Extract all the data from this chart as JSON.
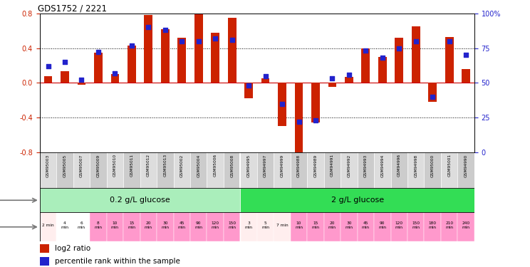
{
  "title": "GDS1752 / 2221",
  "samples": [
    "GSM95003",
    "GSM95005",
    "GSM95007",
    "GSM95009",
    "GSM95010",
    "GSM95011",
    "GSM95012",
    "GSM95013",
    "GSM95002",
    "GSM95004",
    "GSM95006",
    "GSM95008",
    "GSM94995",
    "GSM94997",
    "GSM94999",
    "GSM94988",
    "GSM94989",
    "GSM94991",
    "GSM94992",
    "GSM94993",
    "GSM94994",
    "GSM94996",
    "GSM94998",
    "GSM95000",
    "GSM95001",
    "GSM94990"
  ],
  "log2_ratio": [
    0.08,
    0.13,
    -0.02,
    0.35,
    0.1,
    0.43,
    0.78,
    0.62,
    0.52,
    0.79,
    0.58,
    0.75,
    -0.18,
    0.05,
    -0.5,
    -0.85,
    -0.46,
    -0.05,
    0.07,
    0.4,
    0.3,
    0.52,
    0.65,
    -0.22,
    0.53,
    0.16
  ],
  "percentile": [
    62,
    65,
    52,
    72,
    57,
    77,
    90,
    88,
    80,
    80,
    82,
    81,
    48,
    55,
    35,
    22,
    23,
    53,
    56,
    73,
    68,
    75,
    80,
    40,
    80,
    70
  ],
  "time_labels": [
    "2 min",
    "4\nmin",
    "6\nmin",
    "8\nmin",
    "10\nmin",
    "15\nmin",
    "20\nmin",
    "30\nmin",
    "45\nmin",
    "90\nmin",
    "120\nmin",
    "150\nmin",
    "3\nmin",
    "5\nmin",
    "7 min",
    "10\nmin",
    "15\nmin",
    "20\nmin",
    "30\nmin",
    "45\nmin",
    "90\nmin",
    "120\nmin",
    "150\nmin",
    "180\nmin",
    "210\nmin",
    "240\nmin"
  ],
  "dose_groups": [
    {
      "label": "0.2 g/L glucose",
      "start": 0,
      "end": 12,
      "color": "#aaeebb"
    },
    {
      "label": "2 g/L glucose",
      "start": 12,
      "end": 26,
      "color": "#33dd55"
    }
  ],
  "bar_color": "#CC2200",
  "dot_color": "#2222CC",
  "ylim": [
    -0.8,
    0.8
  ],
  "yticks_left": [
    -0.8,
    -0.4,
    0.0,
    0.4,
    0.8
  ],
  "yticks_right": [
    0,
    25,
    50,
    75,
    100
  ],
  "hline_color": "#CC0000",
  "bg_color": "#FFFFFF",
  "time_bg_colors": [
    "#FFEEEE",
    "#FFFFFF",
    "#FFFFFF",
    "#FF99CC",
    "#FF99CC",
    "#FF99CC",
    "#FF99CC",
    "#FF99CC",
    "#FF99CC",
    "#FF99CC",
    "#FF99CC",
    "#FF99CC",
    "#FFEEEE",
    "#FFEEEE",
    "#FFEEEE",
    "#FF99CC",
    "#FF99CC",
    "#FF99CC",
    "#FF99CC",
    "#FF99CC",
    "#FF99CC",
    "#FF99CC",
    "#FF99CC",
    "#FF99CC",
    "#FF99CC",
    "#FF99CC"
  ],
  "sample_bg_colors": [
    "#DDDDDD",
    "#CCCCCC",
    "#DDDDDD",
    "#CCCCCC",
    "#DDDDDD",
    "#CCCCCC",
    "#DDDDDD",
    "#CCCCCC",
    "#DDDDDD",
    "#CCCCCC",
    "#DDDDDD",
    "#CCCCCC",
    "#DDDDDD",
    "#CCCCCC",
    "#DDDDDD",
    "#CCCCCC",
    "#DDDDDD",
    "#CCCCCC",
    "#DDDDDD",
    "#CCCCCC",
    "#DDDDDD",
    "#CCCCCC",
    "#DDDDDD",
    "#CCCCCC",
    "#DDDDDD",
    "#CCCCCC"
  ]
}
